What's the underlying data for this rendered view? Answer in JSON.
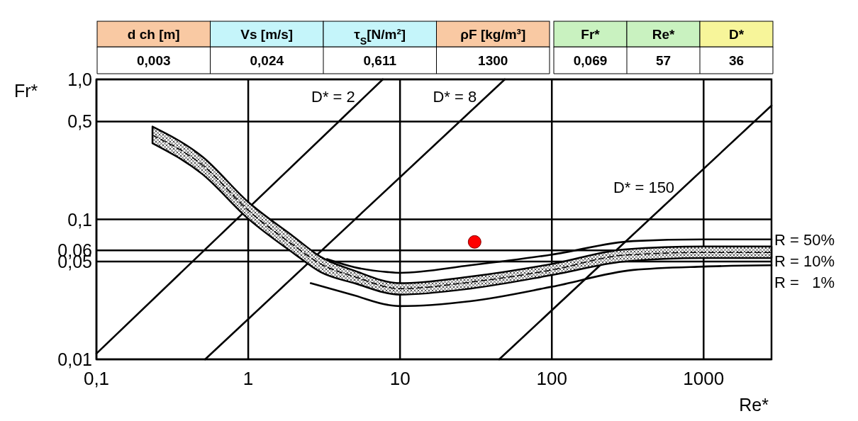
{
  "chart_data": [
    {
      "type": "other",
      "categories": [
        "d ch [m]",
        "Vs [m/s]",
        "τ$_{S}$[N/m²]",
        "ρF [kg/m³]"
      ],
      "value_labels": [
        "0,003",
        "0,024",
        "0,611",
        "1300"
      ],
      "colors": [
        "#f9c9a3",
        "#c5f5fa",
        "#c5f5fa",
        "#f9c9a3"
      ]
    },
    {
      "type": "other",
      "categories": [
        "Fr*",
        "Re*",
        "D*"
      ],
      "value_labels": [
        "0,069",
        "57",
        "36"
      ],
      "colors": [
        "#c9f2c0",
        "#c9f2c0",
        "#f7f59a"
      ]
    },
    {
      "type": "line",
      "xlabel": "Re*",
      "ylabel": "Fr*",
      "log": "xy",
      "grid": true,
      "xlim": [
        0.1,
        2800
      ],
      "ylim": [
        0.01,
        1.0
      ],
      "xticks": [
        {
          "value": 0.1,
          "label": "0,1"
        },
        1,
        10,
        100,
        1000
      ],
      "yticks": [
        {
          "value": 0.01,
          "label": "0,01"
        },
        {
          "value": 0.05,
          "label": "0,05"
        },
        {
          "value": 0.06,
          "label": "0,06"
        },
        {
          "value": 0.1,
          "label": "0,1"
        },
        {
          "value": 0.5,
          "label": "0,5"
        },
        {
          "value": 1.0,
          "label": "1,0"
        }
      ],
      "series": [
        {
          "type": "line",
          "name": "D* = 2",
          "color": "#000000",
          "x": [
            0.1,
            7.7
          ],
          "values": [
            0.011,
            1.0
          ]
        },
        {
          "type": "line",
          "name": "D* = 8",
          "color": "#000000",
          "x": [
            0.52,
            49
          ],
          "values": [
            0.01,
            1.0
          ]
        },
        {
          "type": "line",
          "name": "D* = 150",
          "color": "#000000",
          "x": [
            45,
            2800
          ],
          "values": [
            0.01,
            0.65
          ]
        },
        {
          "type": "line",
          "name": "R = 50%",
          "color": "#000000",
          "x": [
            3.3,
            5,
            8.3,
            10,
            29,
            100,
            344,
            1000,
            2800
          ],
          "values": [
            0.052,
            0.0455,
            0.042,
            0.0415,
            0.047,
            0.056,
            0.07,
            0.072,
            0.072
          ]
        },
        {
          "type": "line",
          "name": "R = 10%",
          "color": "#000000",
          "line_style": "dashed",
          "x": [
            0.234,
            0.5,
            1,
            2,
            3,
            5,
            10,
            29,
            100,
            300,
            1000,
            2800
          ],
          "values": [
            0.4,
            0.244,
            0.116,
            0.065,
            0.048,
            0.039,
            0.032,
            0.0356,
            0.0435,
            0.0555,
            0.058,
            0.058
          ],
          "lower": [
            0.35,
            0.21,
            0.101,
            0.057,
            0.042,
            0.035,
            0.029,
            0.032,
            0.04,
            0.05,
            0.053,
            0.053
          ],
          "upper": [
            0.46,
            0.28,
            0.133,
            0.075,
            0.054,
            0.043,
            0.035,
            0.039,
            0.048,
            0.061,
            0.064,
            0.064
          ]
        },
        {
          "type": "line",
          "name": "R =   1%",
          "color": "#000000",
          "x": [
            2.58,
            5,
            8.3,
            10,
            29,
            100,
            344,
            1000,
            2800
          ],
          "values": [
            0.035,
            0.0286,
            0.0245,
            0.024,
            0.026,
            0.033,
            0.0435,
            0.046,
            0.047
          ]
        },
        {
          "type": "scatter",
          "color": "#ff0000",
          "marker": "circle",
          "x": [
            31
          ],
          "values": [
            0.069
          ]
        }
      ]
    }
  ]
}
